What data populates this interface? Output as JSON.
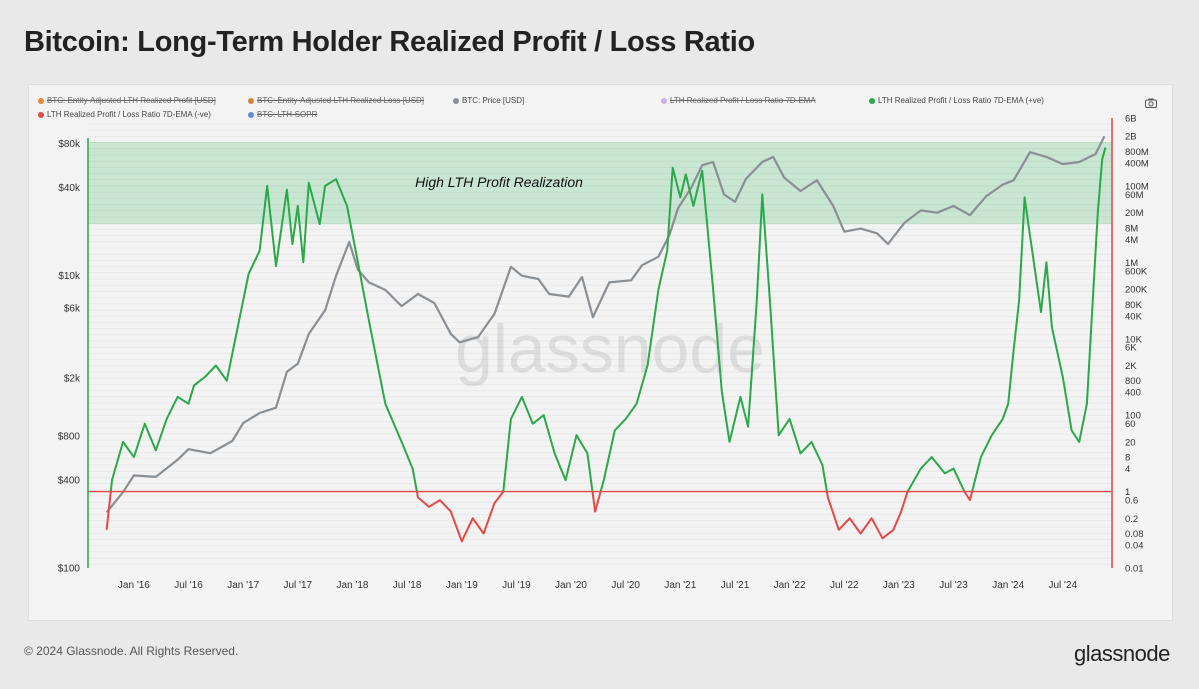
{
  "page": {
    "title": "Bitcoin: Long-Term Holder Realized Profit / Loss Ratio",
    "footer": "© 2024 Glassnode. All Rights Reserved.",
    "brand": "glassnode",
    "watermark": "glassnode"
  },
  "legend": [
    {
      "label": "BTC: Entity-Adjusted LTH Realized Profit [USD]",
      "color": "#e58a3a",
      "disabled": true
    },
    {
      "label": "BTC: Entity-Adjusted LTH Realized Loss [USD]",
      "color": "#d9823a",
      "disabled": true
    },
    {
      "label": "BTC: Price [USD]",
      "color": "#8a8f94",
      "disabled": false
    },
    {
      "label": "LTH Realized Profit / Loss Ratio 7D-EMA",
      "color": "#c9b3e6",
      "disabled": true
    },
    {
      "label": "LTH Realized Profit / Loss Ratio 7D-EMA (+ve)",
      "color": "#2ba84a",
      "disabled": false
    },
    {
      "label": "LTH Realized Profit / Loss Ratio 7D-EMA (-ve)",
      "color": "#e44848",
      "disabled": false
    },
    {
      "label": "BTC: LTH-SOPR",
      "color": "#5b8ed6",
      "disabled": true
    }
  ],
  "chart_data": {
    "type": "line",
    "title": "Bitcoin: Long-Term Holder Realized Profit / Loss Ratio",
    "annotation": "High LTH Profit Realization",
    "x_ticks": [
      "Jan '16",
      "Jul '16",
      "Jan '17",
      "Jul '17",
      "Jan '18",
      "Jul '18",
      "Jan '19",
      "Jul '19",
      "Jan '20",
      "Jul '20",
      "Jan '21",
      "Jul '21",
      "Jan '22",
      "Jul '22",
      "Jan '23",
      "Jul '23",
      "Jan '24",
      "Jul '24"
    ],
    "left_axis": {
      "scale": "log",
      "ticks": [
        "$100",
        "$400",
        "$800",
        "$2k",
        "$6k",
        "$10k",
        "$40k",
        "$80k"
      ],
      "range": [
        100,
        120000
      ]
    },
    "right_axis": {
      "scale": "log",
      "ticks": [
        "0.01",
        "0.04",
        "0.08",
        "0.2",
        "0.6",
        "1",
        "4",
        "8",
        "20",
        "60",
        "100",
        "400",
        "800",
        "2K",
        "6K",
        "10K",
        "40K",
        "80K",
        "200K",
        "600K",
        "1M",
        "4M",
        "8M",
        "20M",
        "60M",
        "100M",
        "400M",
        "800M",
        "2B",
        "6B"
      ],
      "range": [
        0.01,
        6000000000
      ]
    },
    "threshold_ratio": 1,
    "band_ratio_min": 10000000,
    "colors": {
      "price": "#8a8f94",
      "positive": "#2ba84a",
      "negative": "#e44848",
      "threshold": "#e44848",
      "band": "#b9e2c6"
    },
    "series": [
      {
        "name": "BTC: Price [USD]",
        "axis": "left",
        "points": [
          [
            2015.75,
            240
          ],
          [
            2015.9,
            330
          ],
          [
            2016.0,
            430
          ],
          [
            2016.2,
            420
          ],
          [
            2016.4,
            550
          ],
          [
            2016.5,
            650
          ],
          [
            2016.7,
            610
          ],
          [
            2016.9,
            740
          ],
          [
            2017.0,
            980
          ],
          [
            2017.15,
            1150
          ],
          [
            2017.3,
            1250
          ],
          [
            2017.4,
            2200
          ],
          [
            2017.5,
            2500
          ],
          [
            2017.6,
            4000
          ],
          [
            2017.75,
            5800
          ],
          [
            2017.85,
            10000
          ],
          [
            2017.97,
            17000
          ],
          [
            2018.05,
            11000
          ],
          [
            2018.15,
            9000
          ],
          [
            2018.3,
            8000
          ],
          [
            2018.45,
            6200
          ],
          [
            2018.6,
            7500
          ],
          [
            2018.75,
            6500
          ],
          [
            2018.9,
            4000
          ],
          [
            2018.98,
            3500
          ],
          [
            2019.15,
            3800
          ],
          [
            2019.3,
            5500
          ],
          [
            2019.45,
            11500
          ],
          [
            2019.55,
            10000
          ],
          [
            2019.7,
            9500
          ],
          [
            2019.8,
            7500
          ],
          [
            2019.98,
            7200
          ],
          [
            2020.1,
            9800
          ],
          [
            2020.2,
            5200
          ],
          [
            2020.35,
            9000
          ],
          [
            2020.55,
            9300
          ],
          [
            2020.65,
            11800
          ],
          [
            2020.8,
            13500
          ],
          [
            2020.9,
            19000
          ],
          [
            2020.98,
            29000
          ],
          [
            2021.1,
            40000
          ],
          [
            2021.2,
            57000
          ],
          [
            2021.3,
            60000
          ],
          [
            2021.4,
            36000
          ],
          [
            2021.5,
            32000
          ],
          [
            2021.6,
            46000
          ],
          [
            2021.75,
            60000
          ],
          [
            2021.85,
            65000
          ],
          [
            2021.95,
            47000
          ],
          [
            2022.1,
            38000
          ],
          [
            2022.25,
            45000
          ],
          [
            2022.4,
            30000
          ],
          [
            2022.5,
            20000
          ],
          [
            2022.65,
            21000
          ],
          [
            2022.8,
            19500
          ],
          [
            2022.9,
            16500
          ],
          [
            2023.05,
            23000
          ],
          [
            2023.2,
            28000
          ],
          [
            2023.35,
            27000
          ],
          [
            2023.5,
            30000
          ],
          [
            2023.65,
            26000
          ],
          [
            2023.8,
            35000
          ],
          [
            2023.95,
            42000
          ],
          [
            2024.05,
            45000
          ],
          [
            2024.2,
            70000
          ],
          [
            2024.35,
            65000
          ],
          [
            2024.5,
            58000
          ],
          [
            2024.65,
            60000
          ],
          [
            2024.8,
            68000
          ],
          [
            2024.88,
            90000
          ]
        ]
      },
      {
        "name": "LTH Realized Profit / Loss Ratio 7D-EMA",
        "axis": "right",
        "points": [
          [
            2015.75,
            0.1
          ],
          [
            2015.8,
            2
          ],
          [
            2015.9,
            20
          ],
          [
            2016.0,
            8
          ],
          [
            2016.1,
            60
          ],
          [
            2016.2,
            12
          ],
          [
            2016.3,
            80
          ],
          [
            2016.4,
            300
          ],
          [
            2016.5,
            200
          ],
          [
            2016.55,
            600
          ],
          [
            2016.65,
            1000
          ],
          [
            2016.75,
            2000
          ],
          [
            2016.85,
            800
          ],
          [
            2016.95,
            20000
          ],
          [
            2017.05,
            500000
          ],
          [
            2017.15,
            2000000
          ],
          [
            2017.22,
            100000000
          ],
          [
            2017.3,
            800000
          ],
          [
            2017.4,
            80000000
          ],
          [
            2017.45,
            3000000
          ],
          [
            2017.5,
            30000000
          ],
          [
            2017.55,
            1000000
          ],
          [
            2017.6,
            120000000
          ],
          [
            2017.7,
            10000000
          ],
          [
            2017.75,
            100000000
          ],
          [
            2017.85,
            150000000
          ],
          [
            2017.95,
            30000000
          ],
          [
            2018.05,
            1000000
          ],
          [
            2018.15,
            30000
          ],
          [
            2018.3,
            200
          ],
          [
            2018.45,
            20
          ],
          [
            2018.55,
            4
          ],
          [
            2018.6,
            0.7
          ],
          [
            2018.7,
            0.4
          ],
          [
            2018.8,
            0.6
          ],
          [
            2018.9,
            0.3
          ],
          [
            2019.0,
            0.05
          ],
          [
            2019.1,
            0.2
          ],
          [
            2019.2,
            0.08
          ],
          [
            2019.3,
            0.5
          ],
          [
            2019.38,
            1
          ],
          [
            2019.45,
            80
          ],
          [
            2019.55,
            300
          ],
          [
            2019.65,
            60
          ],
          [
            2019.75,
            100
          ],
          [
            2019.85,
            10
          ],
          [
            2019.95,
            2
          ],
          [
            2020.05,
            30
          ],
          [
            2020.15,
            10
          ],
          [
            2020.22,
            0.3
          ],
          [
            2020.3,
            2
          ],
          [
            2020.4,
            40
          ],
          [
            2020.5,
            80
          ],
          [
            2020.6,
            200
          ],
          [
            2020.7,
            2000
          ],
          [
            2020.8,
            200000
          ],
          [
            2020.88,
            2000000
          ],
          [
            2020.93,
            300000000
          ],
          [
            2021.0,
            50000000
          ],
          [
            2021.05,
            200000000
          ],
          [
            2021.12,
            30000000
          ],
          [
            2021.2,
            250000000
          ],
          [
            2021.3,
            200000
          ],
          [
            2021.38,
            400
          ],
          [
            2021.45,
            20
          ],
          [
            2021.55,
            300
          ],
          [
            2021.62,
            50
          ],
          [
            2021.7,
            100000
          ],
          [
            2021.75,
            60000000
          ],
          [
            2021.82,
            100000
          ],
          [
            2021.9,
            30
          ],
          [
            2022.0,
            80
          ],
          [
            2022.1,
            10
          ],
          [
            2022.2,
            20
          ],
          [
            2022.3,
            5
          ],
          [
            2022.35,
            0.7
          ],
          [
            2022.45,
            0.1
          ],
          [
            2022.55,
            0.2
          ],
          [
            2022.65,
            0.08
          ],
          [
            2022.75,
            0.2
          ],
          [
            2022.85,
            0.06
          ],
          [
            2022.95,
            0.1
          ],
          [
            2023.02,
            0.3
          ],
          [
            2023.08,
            1
          ],
          [
            2023.2,
            4
          ],
          [
            2023.3,
            8
          ],
          [
            2023.42,
            3
          ],
          [
            2023.5,
            4
          ],
          [
            2023.6,
            1
          ],
          [
            2023.65,
            0.6
          ],
          [
            2023.75,
            8
          ],
          [
            2023.85,
            30
          ],
          [
            2023.95,
            80
          ],
          [
            2024.0,
            200
          ],
          [
            2024.05,
            5000
          ],
          [
            2024.1,
            100000
          ],
          [
            2024.15,
            50000000
          ],
          [
            2024.2,
            5000000
          ],
          [
            2024.3,
            50000
          ],
          [
            2024.35,
            1000000
          ],
          [
            2024.4,
            20000
          ],
          [
            2024.5,
            1000
          ],
          [
            2024.58,
            40
          ],
          [
            2024.65,
            20
          ],
          [
            2024.72,
            200
          ],
          [
            2024.78,
            200000
          ],
          [
            2024.82,
            20000000
          ],
          [
            2024.86,
            500000000
          ],
          [
            2024.89,
            1000000000
          ]
        ]
      }
    ]
  }
}
